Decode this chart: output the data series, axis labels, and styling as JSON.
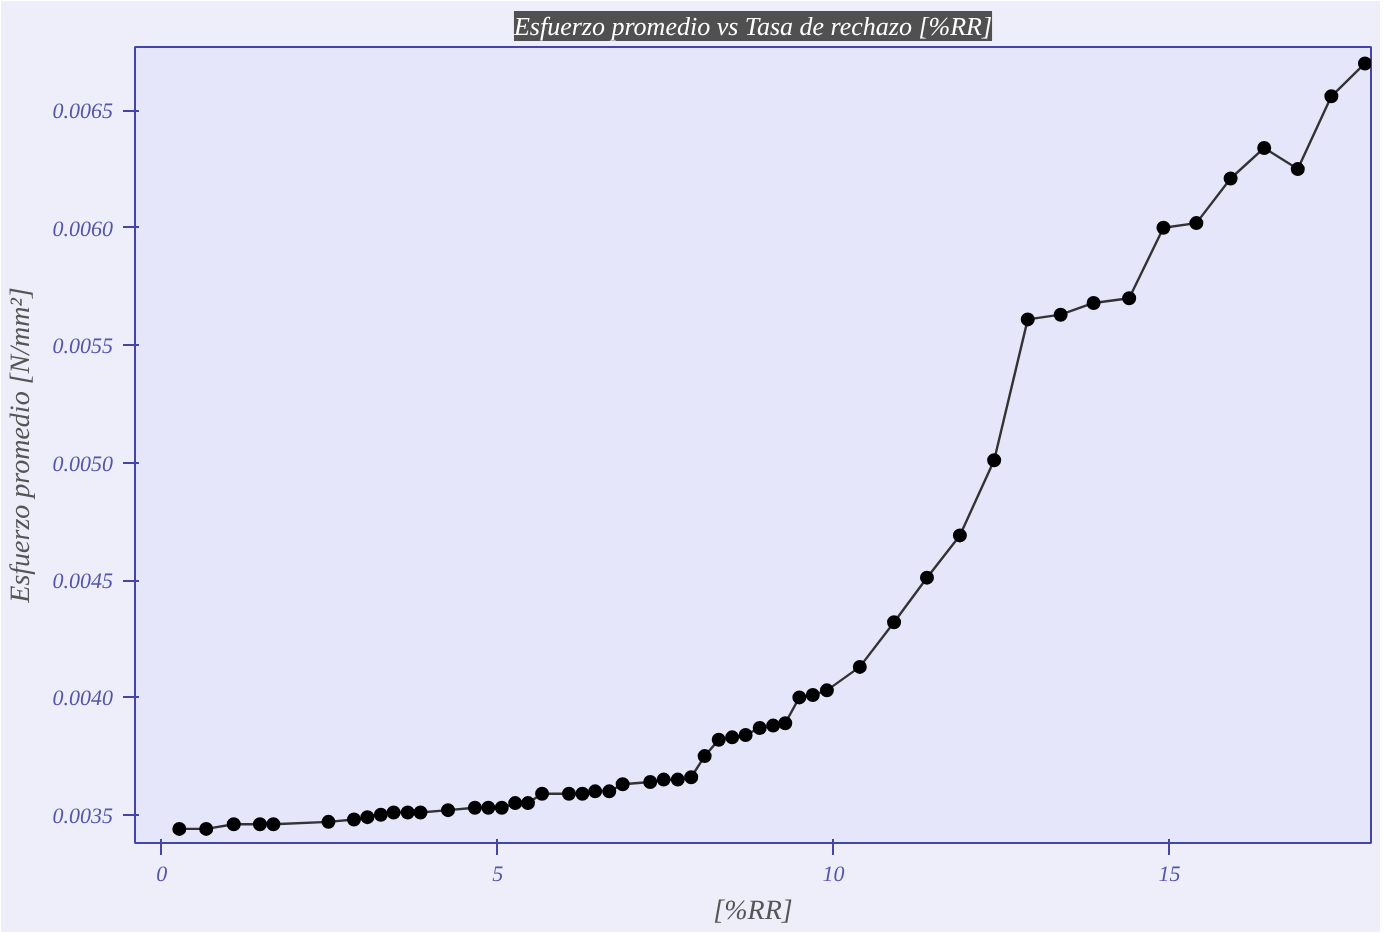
{
  "chart_data": {
    "type": "line",
    "title": "Esfuerzo promedio vs Tasa de rechazo [%RR]",
    "xlabel": "[%RR]",
    "ylabel": "Esfuerzo promedio [N/mm²]",
    "x": [
      0.26,
      0.66,
      1.07,
      1.46,
      1.66,
      2.48,
      2.86,
      3.06,
      3.26,
      3.45,
      3.66,
      3.85,
      4.26,
      4.66,
      4.86,
      5.06,
      5.26,
      5.45,
      5.66,
      6.06,
      6.26,
      6.45,
      6.66,
      6.86,
      7.27,
      7.47,
      7.68,
      7.88,
      8.08,
      8.29,
      8.49,
      8.69,
      8.9,
      9.1,
      9.28,
      9.49,
      9.69,
      9.9,
      10.39,
      10.9,
      11.39,
      11.88,
      12.39,
      12.89,
      13.38,
      13.87,
      14.4,
      14.91,
      15.4,
      15.91,
      16.41,
      16.91,
      17.41,
      17.91
    ],
    "series": [
      {
        "color": "#000000",
        "values": [
          0.00344,
          0.00344,
          0.00346,
          0.00346,
          0.00346,
          0.00347,
          0.00348,
          0.00349,
          0.0035,
          0.00351,
          0.00351,
          0.00351,
          0.00352,
          0.00353,
          0.00353,
          0.00353,
          0.00355,
          0.00355,
          0.00359,
          0.00359,
          0.00359,
          0.0036,
          0.0036,
          0.00363,
          0.00364,
          0.00365,
          0.00365,
          0.00366,
          0.00375,
          0.00382,
          0.00383,
          0.00384,
          0.00387,
          0.00388,
          0.00389,
          0.004,
          0.00401,
          0.00403,
          0.00413,
          0.00432,
          0.00451,
          0.00469,
          0.00501,
          0.00561,
          0.00563,
          0.00568,
          0.0057,
          0.006,
          0.00602,
          0.00621,
          0.00634,
          0.00625,
          0.00656,
          0.0067
        ]
      }
    ],
    "xlim": [
      -0.4,
      18.0
    ],
    "ylim": [
      0.00338,
      0.00677
    ],
    "xticks": [
      0,
      5,
      10,
      15
    ],
    "yticks": [
      0.0035,
      {
        "value": 0.004,
        "label": "0.0040"
      },
      0.0045,
      {
        "value": 0.005,
        "label": "0.0050"
      },
      0.0055,
      {
        "value": 0.006,
        "label": "0.0060"
      },
      0.0065
    ],
    "marker": "circle",
    "grid": false
  }
}
